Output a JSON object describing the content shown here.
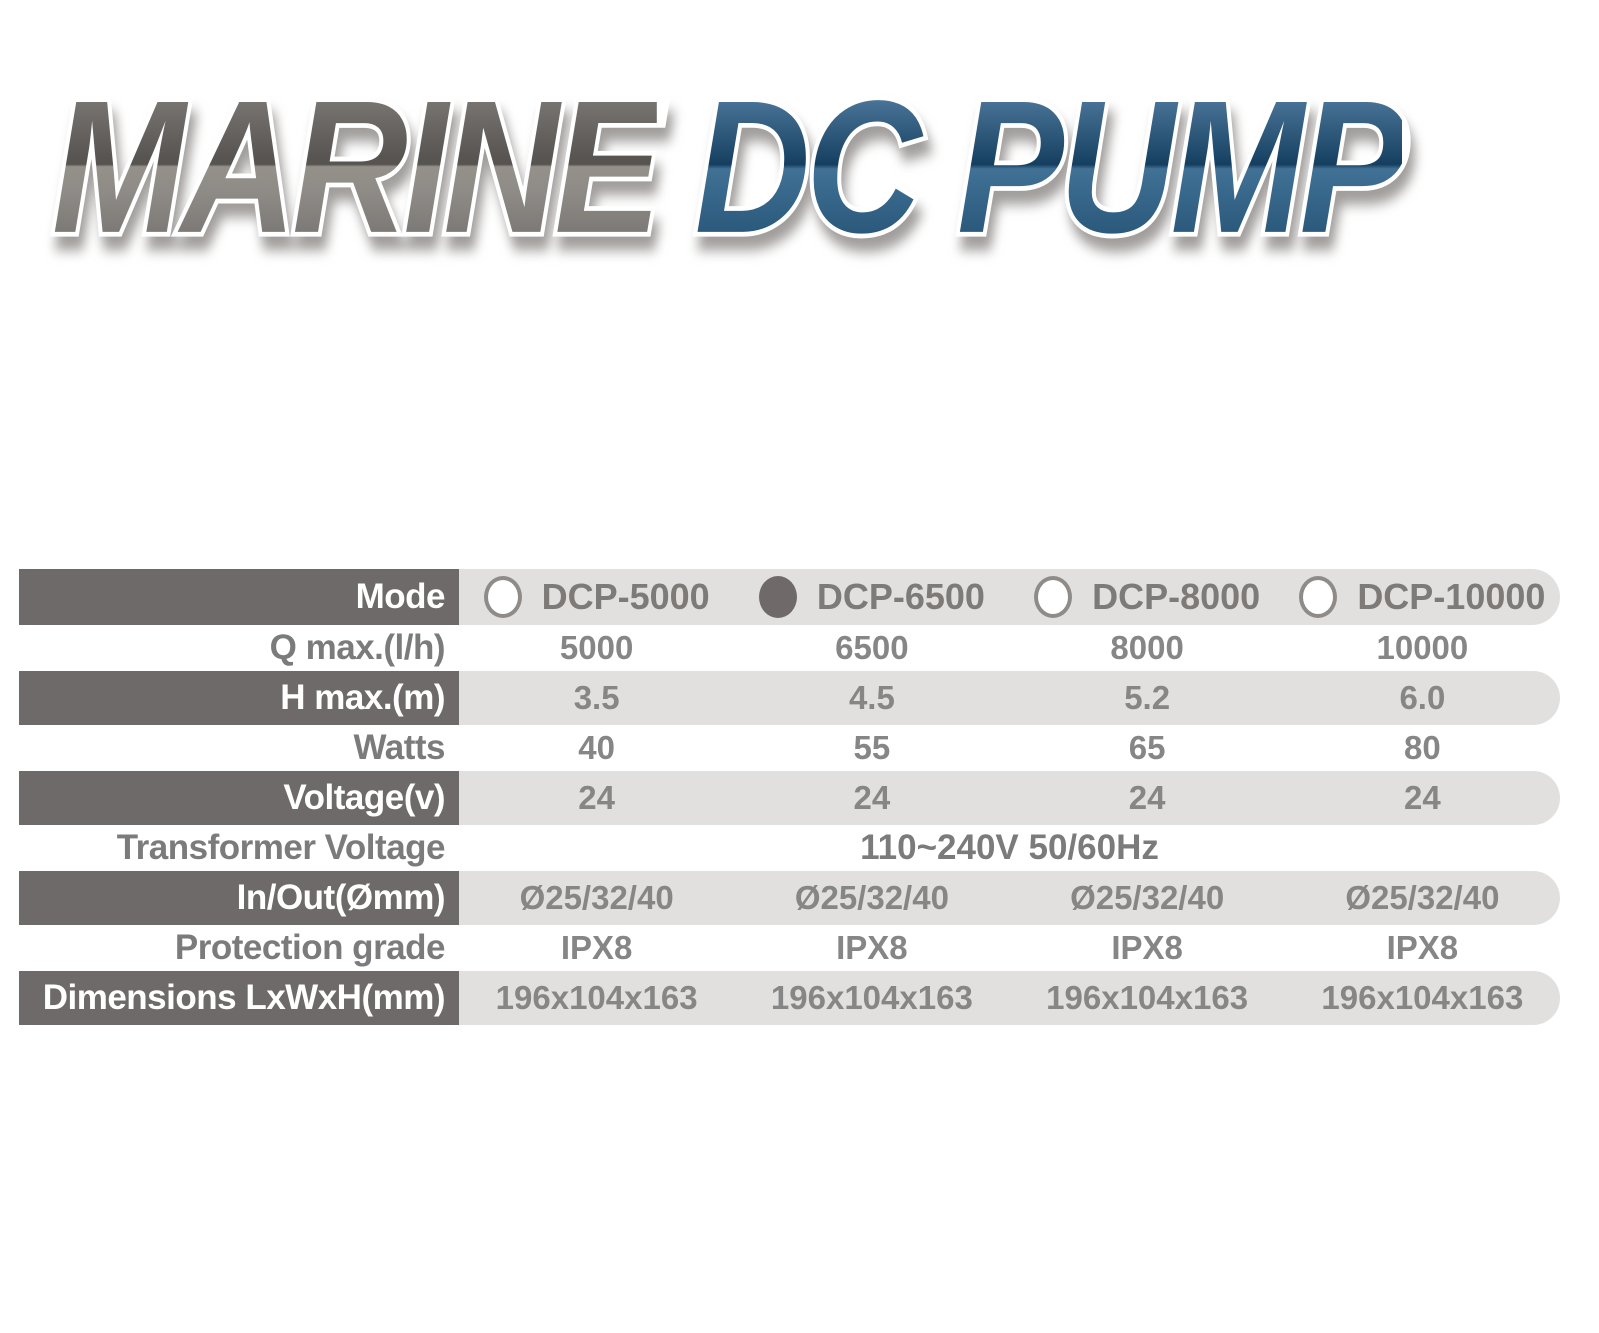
{
  "title": {
    "marine": "MARINE",
    "dc_pump": "DC PUMP"
  },
  "colors": {
    "marine_gray": "#6b6764",
    "pump_blue": "#1c4868",
    "band_dark": "#6e6a69",
    "band_light": "#e1e0df",
    "value_text": "#868686"
  },
  "table": {
    "header": {
      "label": "Mode",
      "models": [
        {
          "name": "DCP-5000",
          "selected": false
        },
        {
          "name": "DCP-6500",
          "selected": true
        },
        {
          "name": "DCP-8000",
          "selected": false
        },
        {
          "name": "DCP-10000",
          "selected": false
        }
      ]
    },
    "rows": [
      {
        "label": "Q max.(l/h)",
        "values": [
          "5000",
          "6500",
          "8000",
          "10000"
        ]
      },
      {
        "label": "H max.(m)",
        "values": [
          "3.5",
          "4.5",
          "5.2",
          "6.0"
        ]
      },
      {
        "label": "Watts",
        "values": [
          "40",
          "55",
          "65",
          "80"
        ]
      },
      {
        "label": "Voltage(v)",
        "values": [
          "24",
          "24",
          "24",
          "24"
        ]
      },
      {
        "label": "Transformer Voltage",
        "span_value": "110~240V 50/60Hz"
      },
      {
        "label": "In/Out(Ømm)",
        "values": [
          "Ø25/32/40",
          "Ø25/32/40",
          "Ø25/32/40",
          "Ø25/32/40"
        ]
      },
      {
        "label": "Protection grade",
        "values": [
          "IPX8",
          "IPX8",
          "IPX8",
          "IPX8"
        ]
      },
      {
        "label": "Dimensions LxWxH(mm)",
        "values": [
          "196x104x163",
          "196x104x163",
          "196x104x163",
          "196x104x163"
        ]
      }
    ]
  }
}
